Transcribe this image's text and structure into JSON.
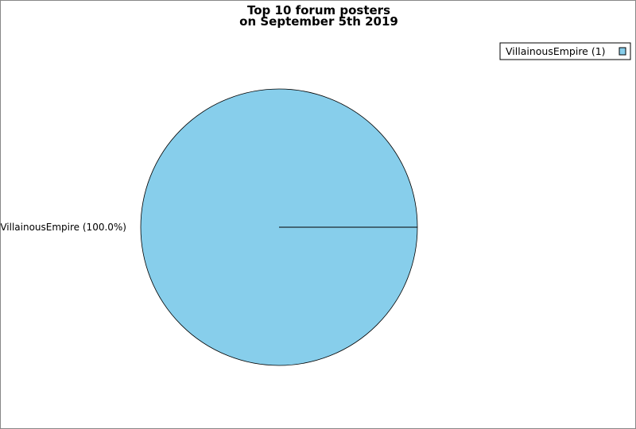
{
  "chart_data": {
    "type": "pie",
    "title_line1": "Top 10 forum posters",
    "title_line2": "on September 5th 2019",
    "slices": [
      {
        "name": "VillainousEmpire",
        "value": 1,
        "percent": 100.0,
        "label": "VillainousEmpire (100.0%)",
        "legend": "VillainousEmpire (1)",
        "color": "#87CEEB"
      }
    ],
    "legend_placement": "top-right"
  }
}
